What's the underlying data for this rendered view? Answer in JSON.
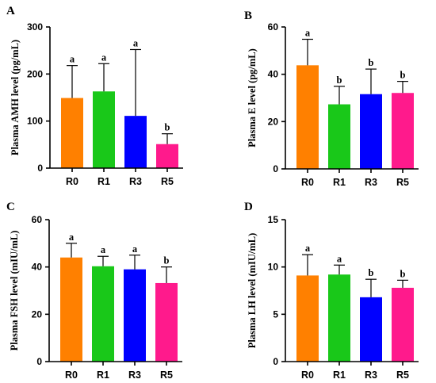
{
  "chart_data": [
    {
      "type": "bar",
      "panel": "A",
      "ylabel": "Plasma AMH level (pg/mL)",
      "ylim": [
        0,
        300
      ],
      "yticks": [
        0,
        100,
        200,
        300
      ],
      "categories": [
        "R0",
        "R1",
        "R3",
        "R5"
      ],
      "values": [
        149,
        163,
        111,
        51
      ],
      "errors": [
        69,
        59,
        141,
        22
      ],
      "letters": [
        "a",
        "a",
        "a",
        "b"
      ]
    },
    {
      "type": "bar",
      "panel": "B",
      "ylabel": "Plasma E level (pg/mL)",
      "ylim": [
        0,
        60
      ],
      "yticks": [
        0,
        20,
        40,
        60
      ],
      "categories": [
        "R0",
        "R1",
        "R3",
        "R5"
      ],
      "values": [
        43.8,
        27.3,
        31.6,
        32.1
      ],
      "errors": [
        11,
        7.6,
        10.6,
        4.9
      ],
      "letters": [
        "a",
        "b",
        "b",
        "b"
      ]
    },
    {
      "type": "bar",
      "panel": "C",
      "ylabel": "Plasma FSH level (mIU/mL)",
      "ylim": [
        0,
        60
      ],
      "yticks": [
        0,
        20,
        40,
        60
      ],
      "categories": [
        "R0",
        "R1",
        "R3",
        "R5"
      ],
      "values": [
        44,
        40.3,
        39,
        33.2
      ],
      "errors": [
        6,
        4.2,
        6,
        6.8
      ],
      "letters": [
        "a",
        "a",
        "a",
        "b"
      ]
    },
    {
      "type": "bar",
      "panel": "D",
      "ylabel": "Plasma LH level (mIU/mL)",
      "ylim": [
        0,
        15
      ],
      "yticks": [
        0,
        5,
        10,
        15
      ],
      "categories": [
        "R0",
        "R1",
        "R3",
        "R5"
      ],
      "values": [
        9.1,
        9.2,
        6.8,
        7.8
      ],
      "errors": [
        2.2,
        1,
        1.9,
        0.8
      ],
      "letters": [
        "a",
        "a",
        "b",
        "b"
      ]
    }
  ],
  "colors": {
    "R0": "#ff8000",
    "R1": "#19c819",
    "R3": "#0000ff",
    "R5": "#ff1a8c"
  }
}
